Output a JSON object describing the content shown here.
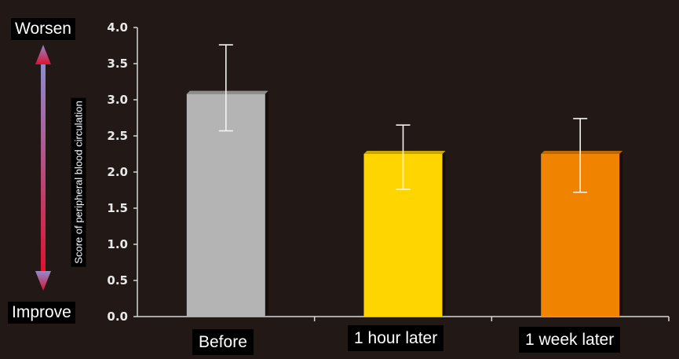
{
  "chart_data": {
    "type": "bar",
    "categories": [
      "Before",
      "1 hour later",
      "1 week later"
    ],
    "values": [
      3.08,
      2.25,
      2.25
    ],
    "error_low": [
      2.57,
      1.76,
      1.72
    ],
    "error_high": [
      3.76,
      2.65,
      2.74
    ],
    "ylabel": "Score of peripheral blood circulation",
    "xlabel": "",
    "ylim": [
      0.0,
      4.0
    ],
    "yticks": [
      "0.0",
      "0.5",
      "1.0",
      "1.5",
      "2.0",
      "2.5",
      "3.0",
      "3.5",
      "4.0"
    ],
    "grid": false,
    "legend": "none",
    "colors": [
      "#b4b4b4",
      "#ffd500",
      "#f08300"
    ],
    "annotations": {
      "top": "Worsen",
      "bottom": "Improve"
    }
  },
  "arrow_colors": {
    "top": "#8c8cd2",
    "bottom": "#e0102e"
  }
}
